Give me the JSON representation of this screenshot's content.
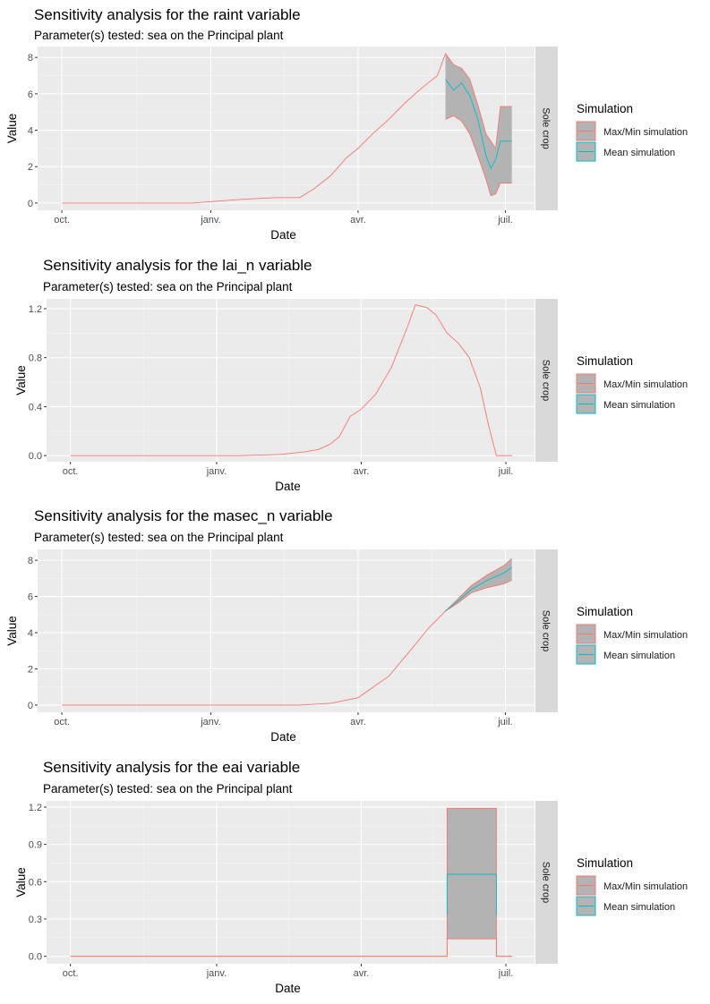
{
  "legend": {
    "title": "Simulation",
    "entries": [
      "Max/Min simulation",
      "Mean simulation"
    ]
  },
  "colors": {
    "minmax": "#f8766d",
    "mean": "#00bfc4",
    "band": "#b3b3b3",
    "panel": "#ebebeb",
    "strip": "#d9d9d9"
  },
  "chart_data": [
    {
      "type": "line",
      "title": "Sensitivity analysis for the raint variable",
      "subtitle": "Parameter(s) tested: sea on the  Principal plant",
      "xlabel": "Date",
      "ylabel": "Value",
      "facet": "Sole crop",
      "xlim": [
        "2019-09-16",
        "2020-07-19"
      ],
      "ylim": [
        -0.4,
        8.6
      ],
      "x_ticks": [
        {
          "date": "2019-10-01",
          "label": "oct."
        },
        {
          "date": "2020-01-01",
          "label": "janv."
        },
        {
          "date": "2020-04-01",
          "label": "avr."
        },
        {
          "date": "2020-07-01",
          "label": "juil."
        }
      ],
      "y_ticks": [
        {
          "value": 0,
          "label": "0"
        },
        {
          "value": 2,
          "label": "2"
        },
        {
          "value": 4,
          "label": "4"
        },
        {
          "value": 6,
          "label": "6"
        },
        {
          "value": 8,
          "label": "8"
        }
      ],
      "series": [
        {
          "name": "Max/Min simulation",
          "role": "max",
          "x": [
            "2019-10-01",
            "2019-12-20",
            "2020-01-05",
            "2020-01-20",
            "2020-02-10",
            "2020-02-25",
            "2020-03-05",
            "2020-03-15",
            "2020-03-25",
            "2020-04-01",
            "2020-04-10",
            "2020-04-20",
            "2020-04-30",
            "2020-05-10",
            "2020-05-20",
            "2020-05-25",
            "2020-05-30",
            "2020-06-04",
            "2020-06-09",
            "2020-06-14",
            "2020-06-19",
            "2020-06-22",
            "2020-06-25",
            "2020-06-28",
            "2020-07-05"
          ],
          "y": [
            0,
            0,
            0.1,
            0.2,
            0.3,
            0.3,
            0.8,
            1.5,
            2.5,
            3.0,
            3.8,
            4.6,
            5.5,
            6.3,
            7.0,
            8.2,
            7.6,
            7.4,
            6.8,
            5.4,
            3.8,
            3.4,
            3.0,
            5.3,
            5.3
          ]
        },
        {
          "name": "Max/Min simulation",
          "role": "min",
          "x": [
            "2020-05-25",
            "2020-05-30",
            "2020-06-04",
            "2020-06-09",
            "2020-06-14",
            "2020-06-19",
            "2020-06-22",
            "2020-06-25",
            "2020-06-28",
            "2020-07-05"
          ],
          "y": [
            4.6,
            4.8,
            4.5,
            3.8,
            2.6,
            1.3,
            0.4,
            0.5,
            1.1,
            1.1
          ]
        },
        {
          "name": "Mean simulation",
          "role": "mean",
          "x": [
            "2020-05-25",
            "2020-05-30",
            "2020-06-04",
            "2020-06-09",
            "2020-06-14",
            "2020-06-19",
            "2020-06-22",
            "2020-06-25",
            "2020-06-28",
            "2020-07-05"
          ],
          "y": [
            6.8,
            6.2,
            6.6,
            5.9,
            4.6,
            2.6,
            1.9,
            2.4,
            3.4,
            3.4
          ]
        }
      ]
    },
    {
      "type": "line",
      "title": "Sensitivity analysis for the lai_n variable",
      "subtitle": "Parameter(s) tested: sea on the  Principal plant",
      "xlabel": "Date",
      "ylabel": "Value",
      "facet": "Sole crop",
      "xlim": [
        "2019-09-16",
        "2020-07-19"
      ],
      "ylim": [
        -0.05,
        1.28
      ],
      "x_ticks": [
        {
          "date": "2019-10-01",
          "label": "oct."
        },
        {
          "date": "2020-01-01",
          "label": "janv."
        },
        {
          "date": "2020-04-01",
          "label": "avr."
        },
        {
          "date": "2020-07-01",
          "label": "juil."
        }
      ],
      "y_ticks": [
        {
          "value": 0,
          "label": "0.0"
        },
        {
          "value": 0.4,
          "label": "0.4"
        },
        {
          "value": 0.8,
          "label": "0.8"
        },
        {
          "value": 1.2,
          "label": "1.2"
        }
      ],
      "series": [
        {
          "name": "Max/Min simulation",
          "role": "max",
          "x": [
            "2019-10-01",
            "2020-01-15",
            "2020-02-10",
            "2020-02-25",
            "2020-03-05",
            "2020-03-12",
            "2020-03-18",
            "2020-03-25",
            "2020-04-01",
            "2020-04-10",
            "2020-04-20",
            "2020-04-30",
            "2020-05-05",
            "2020-05-12",
            "2020-05-18",
            "2020-05-25",
            "2020-06-01",
            "2020-06-08",
            "2020-06-15",
            "2020-06-20",
            "2020-06-25",
            "2020-07-05"
          ],
          "y": [
            0,
            0,
            0.01,
            0.03,
            0.05,
            0.09,
            0.15,
            0.32,
            0.38,
            0.5,
            0.72,
            1.05,
            1.23,
            1.21,
            1.15,
            1.0,
            0.92,
            0.8,
            0.55,
            0.25,
            0,
            0
          ]
        }
      ]
    },
    {
      "type": "line",
      "title": "Sensitivity analysis for the masec_n variable",
      "subtitle": "Parameter(s) tested: sea on the  Principal plant",
      "xlabel": "Date",
      "ylabel": "Value",
      "facet": "Sole crop",
      "xlim": [
        "2019-09-16",
        "2020-07-19"
      ],
      "ylim": [
        -0.4,
        8.6
      ],
      "x_ticks": [
        {
          "date": "2019-10-01",
          "label": "oct."
        },
        {
          "date": "2020-01-01",
          "label": "janv."
        },
        {
          "date": "2020-04-01",
          "label": "avr."
        },
        {
          "date": "2020-07-01",
          "label": "juil."
        }
      ],
      "y_ticks": [
        {
          "value": 0,
          "label": "0"
        },
        {
          "value": 2,
          "label": "2"
        },
        {
          "value": 4,
          "label": "4"
        },
        {
          "value": 6,
          "label": "6"
        },
        {
          "value": 8,
          "label": "8"
        }
      ],
      "series": [
        {
          "name": "Max/Min simulation",
          "role": "max",
          "x": [
            "2019-10-01",
            "2020-02-25",
            "2020-03-15",
            "2020-04-01",
            "2020-04-20",
            "2020-05-05",
            "2020-05-15",
            "2020-05-25",
            "2020-06-01",
            "2020-06-10",
            "2020-06-20",
            "2020-06-30",
            "2020-07-05"
          ],
          "y": [
            0,
            0,
            0.1,
            0.4,
            1.6,
            3.2,
            4.3,
            5.2,
            5.8,
            6.6,
            7.2,
            7.7,
            8.1
          ]
        },
        {
          "name": "Max/Min simulation",
          "role": "min",
          "x": [
            "2020-05-25",
            "2020-06-01",
            "2020-06-10",
            "2020-06-20",
            "2020-06-30",
            "2020-07-05"
          ],
          "y": [
            5.2,
            5.6,
            6.2,
            6.5,
            6.7,
            6.9
          ]
        },
        {
          "name": "Mean simulation",
          "role": "mean",
          "x": [
            "2020-05-25",
            "2020-06-01",
            "2020-06-10",
            "2020-06-20",
            "2020-06-30",
            "2020-07-05"
          ],
          "y": [
            5.2,
            5.7,
            6.4,
            6.9,
            7.3,
            7.6
          ]
        }
      ]
    },
    {
      "type": "line",
      "title": "Sensitivity analysis for the eai variable",
      "subtitle": "Parameter(s) tested: sea on the  Principal plant",
      "xlabel": "Date",
      "ylabel": "Value",
      "facet": "Sole crop",
      "xlim": [
        "2019-09-16",
        "2020-07-19"
      ],
      "ylim": [
        -0.06,
        1.25
      ],
      "x_ticks": [
        {
          "date": "2019-10-01",
          "label": "oct."
        },
        {
          "date": "2020-01-01",
          "label": "janv."
        },
        {
          "date": "2020-04-01",
          "label": "avr."
        },
        {
          "date": "2020-07-01",
          "label": "juil."
        }
      ],
      "y_ticks": [
        {
          "value": 0,
          "label": "0.0"
        },
        {
          "value": 0.3,
          "label": "0.3"
        },
        {
          "value": 0.6,
          "label": "0.6"
        },
        {
          "value": 0.9,
          "label": "0.9"
        },
        {
          "value": 1.2,
          "label": "1.2"
        }
      ],
      "series": [
        {
          "name": "Max/Min simulation",
          "role": "max",
          "x": [
            "2019-10-01",
            "2020-05-25",
            "2020-05-25",
            "2020-06-25",
            "2020-06-25",
            "2020-07-05"
          ],
          "y": [
            0,
            0,
            1.19,
            1.19,
            0,
            0
          ]
        },
        {
          "name": "Max/Min simulation",
          "role": "min",
          "x": [
            "2019-10-01",
            "2020-05-25",
            "2020-05-25",
            "2020-06-25",
            "2020-06-25",
            "2020-07-05"
          ],
          "y": [
            0,
            0,
            0.14,
            0.14,
            0,
            0
          ]
        },
        {
          "name": "Mean simulation",
          "role": "mean",
          "x": [
            "2020-05-25",
            "2020-05-25",
            "2020-06-25",
            "2020-06-25"
          ],
          "y": [
            0.33,
            0.66,
            0.66,
            0.33
          ]
        }
      ]
    }
  ]
}
